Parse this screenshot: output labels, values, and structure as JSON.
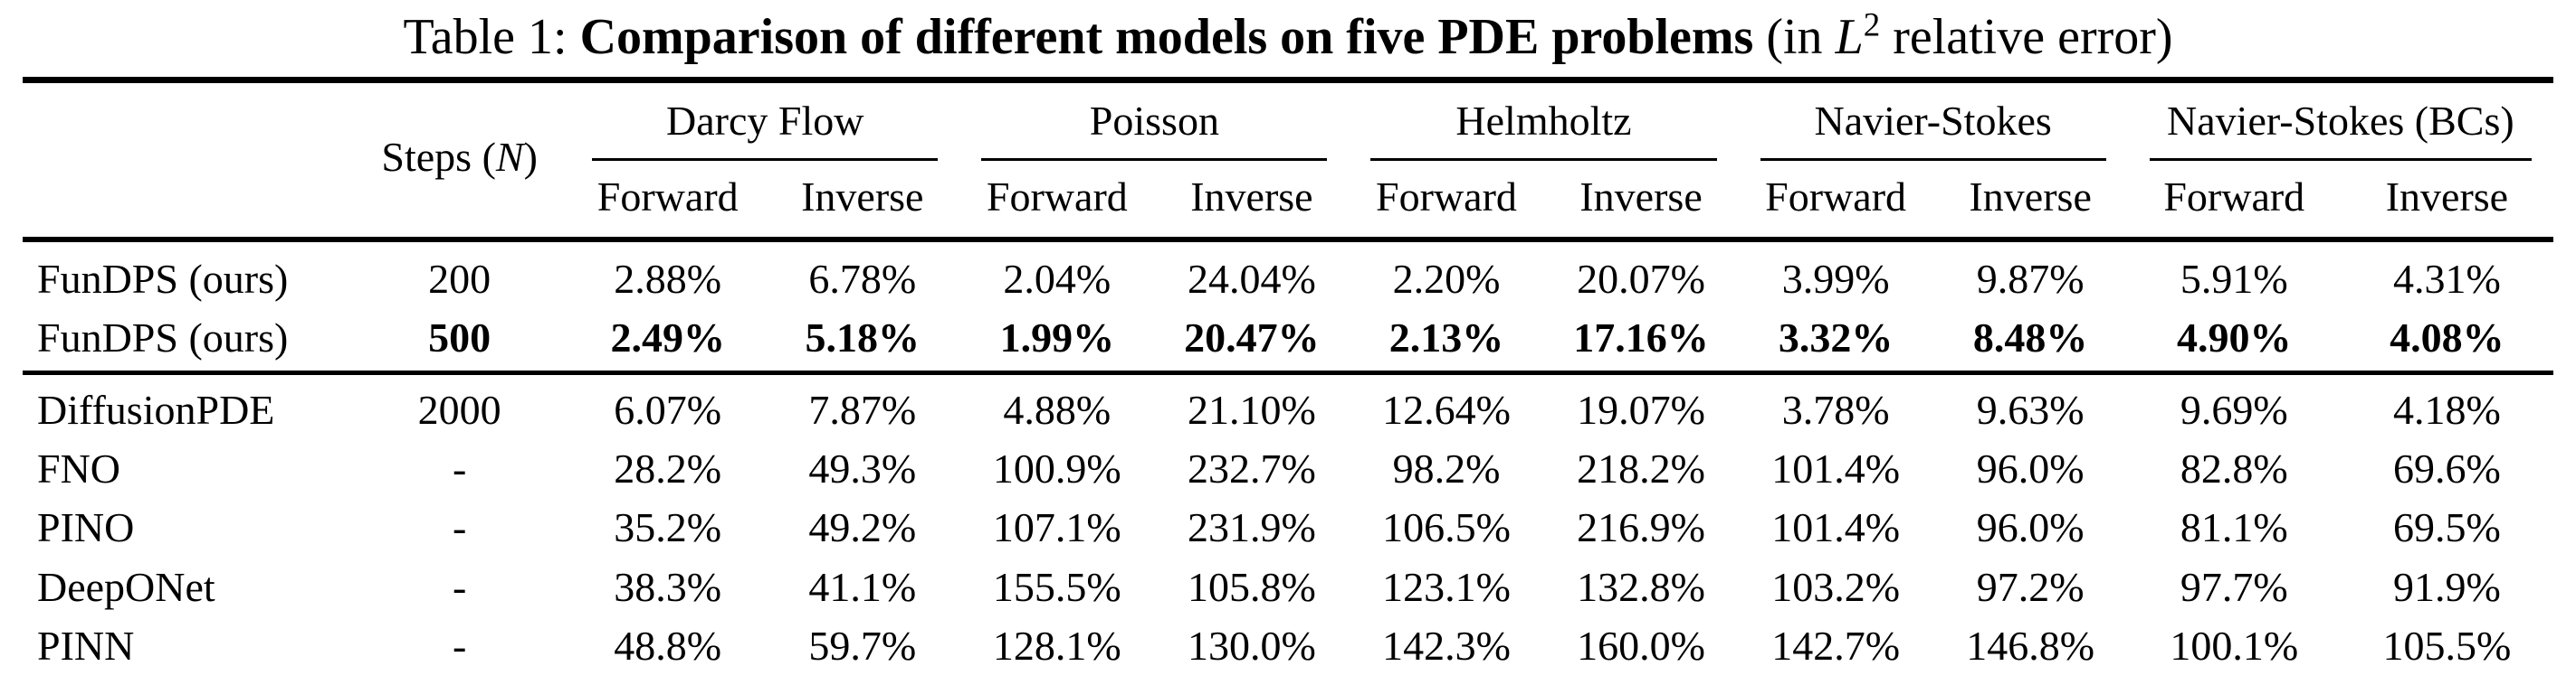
{
  "colors": {
    "text": "#000000",
    "background": "#ffffff"
  },
  "caption": {
    "prefix": "Table 1: ",
    "bold_text": "Comparison of different models on five PDE problems",
    "mid": " (in ",
    "math_base": "L",
    "math_sup": "2",
    "suffix": " relative error)"
  },
  "table": {
    "steps_header": {
      "pre": "Steps (",
      "var": "N",
      "post": ")"
    },
    "groups": [
      {
        "label": "Darcy Flow"
      },
      {
        "label": "Poisson"
      },
      {
        "label": "Helmholtz"
      },
      {
        "label": "Navier-Stokes"
      },
      {
        "label": "Navier-Stokes (BCs)"
      }
    ],
    "subcols": {
      "forward": "Forward",
      "inverse": "Inverse"
    },
    "rows": [
      {
        "model": "FunDPS (ours)",
        "steps": "200",
        "bold": false,
        "values": [
          "2.88%",
          "6.78%",
          "2.04%",
          "24.04%",
          "2.20%",
          "20.07%",
          "3.99%",
          "9.87%",
          "5.91%",
          "4.31%"
        ]
      },
      {
        "model": "FunDPS (ours)",
        "steps": "500",
        "bold": true,
        "values": [
          "2.49%",
          "5.18%",
          "1.99%",
          "20.47%",
          "2.13%",
          "17.16%",
          "3.32%",
          "8.48%",
          "4.90%",
          "4.08%"
        ]
      },
      {
        "model": "DiffusionPDE",
        "steps": "2000",
        "bold": false,
        "values": [
          "6.07%",
          "7.87%",
          "4.88%",
          "21.10%",
          "12.64%",
          "19.07%",
          "3.78%",
          "9.63%",
          "9.69%",
          "4.18%"
        ]
      },
      {
        "model": "FNO",
        "steps": "-",
        "bold": false,
        "values": [
          "28.2%",
          "49.3%",
          "100.9%",
          "232.7%",
          "98.2%",
          "218.2%",
          "101.4%",
          "96.0%",
          "82.8%",
          "69.6%"
        ]
      },
      {
        "model": "PINO",
        "steps": "-",
        "bold": false,
        "values": [
          "35.2%",
          "49.2%",
          "107.1%",
          "231.9%",
          "106.5%",
          "216.9%",
          "101.4%",
          "96.0%",
          "81.1%",
          "69.5%"
        ]
      },
      {
        "model": "DeepONet",
        "steps": "-",
        "bold": false,
        "values": [
          "38.3%",
          "41.1%",
          "155.5%",
          "105.8%",
          "123.1%",
          "132.8%",
          "103.2%",
          "97.2%",
          "97.7%",
          "91.9%"
        ]
      },
      {
        "model": "PINN",
        "steps": "-",
        "bold": false,
        "values": [
          "48.8%",
          "59.7%",
          "128.1%",
          "130.0%",
          "142.3%",
          "160.0%",
          "142.7%",
          "146.8%",
          "100.1%",
          "105.5%"
        ]
      }
    ]
  }
}
